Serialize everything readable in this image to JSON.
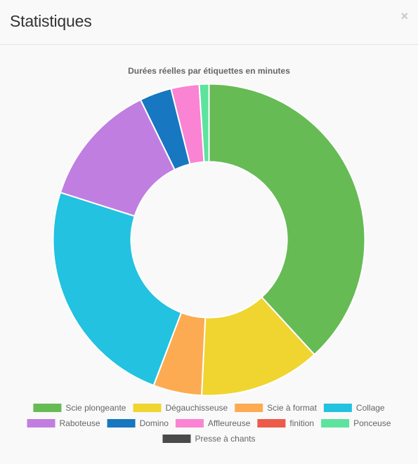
{
  "modal": {
    "title": "Statistiques",
    "close_label": "×"
  },
  "colors": {
    "slice_border": "#ffffff",
    "legend_text": "#666666",
    "title_text": "#666666"
  },
  "chart_data": {
    "type": "doughnut",
    "title": "Durées réelles par étiquettes en minutes",
    "legend_position": "bottom",
    "series": [
      {
        "name": "Scie plongeante",
        "value": 38.0,
        "color": "#66bb55"
      },
      {
        "name": "Dégauchisseuse",
        "value": 12.5,
        "color": "#f0d430"
      },
      {
        "name": "Scie à format",
        "value": 5.0,
        "color": "#fcab52"
      },
      {
        "name": "Collage",
        "value": 24.0,
        "color": "#22c2e0"
      },
      {
        "name": "Raboteuse",
        "value": 12.8,
        "color": "#c17ee1"
      },
      {
        "name": "Domino",
        "value": 3.3,
        "color": "#1777c0"
      },
      {
        "name": "Affleureuse",
        "value": 2.9,
        "color": "#fb83d3"
      },
      {
        "name": "finition",
        "value": 0.0,
        "color": "#ed5b4a"
      },
      {
        "name": "Ponceuse",
        "value": 1.0,
        "color": "#5de39e"
      },
      {
        "name": "Presse à chants",
        "value": 0.0,
        "color": "#4a4a4a"
      }
    ]
  }
}
